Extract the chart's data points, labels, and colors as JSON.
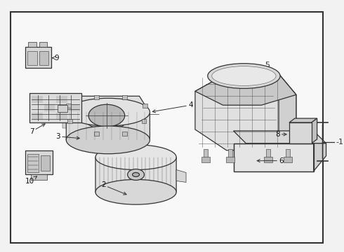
{
  "bg_color": "#f2f2f2",
  "border_color": "#444444",
  "line_color": "#333333",
  "white": "#ffffff",
  "label_color": "#111111",
  "lw_main": 0.9,
  "lw_thin": 0.5,
  "lw_border": 1.2,
  "label_fs": 7.5,
  "inner_bg": "#f8f8f8"
}
